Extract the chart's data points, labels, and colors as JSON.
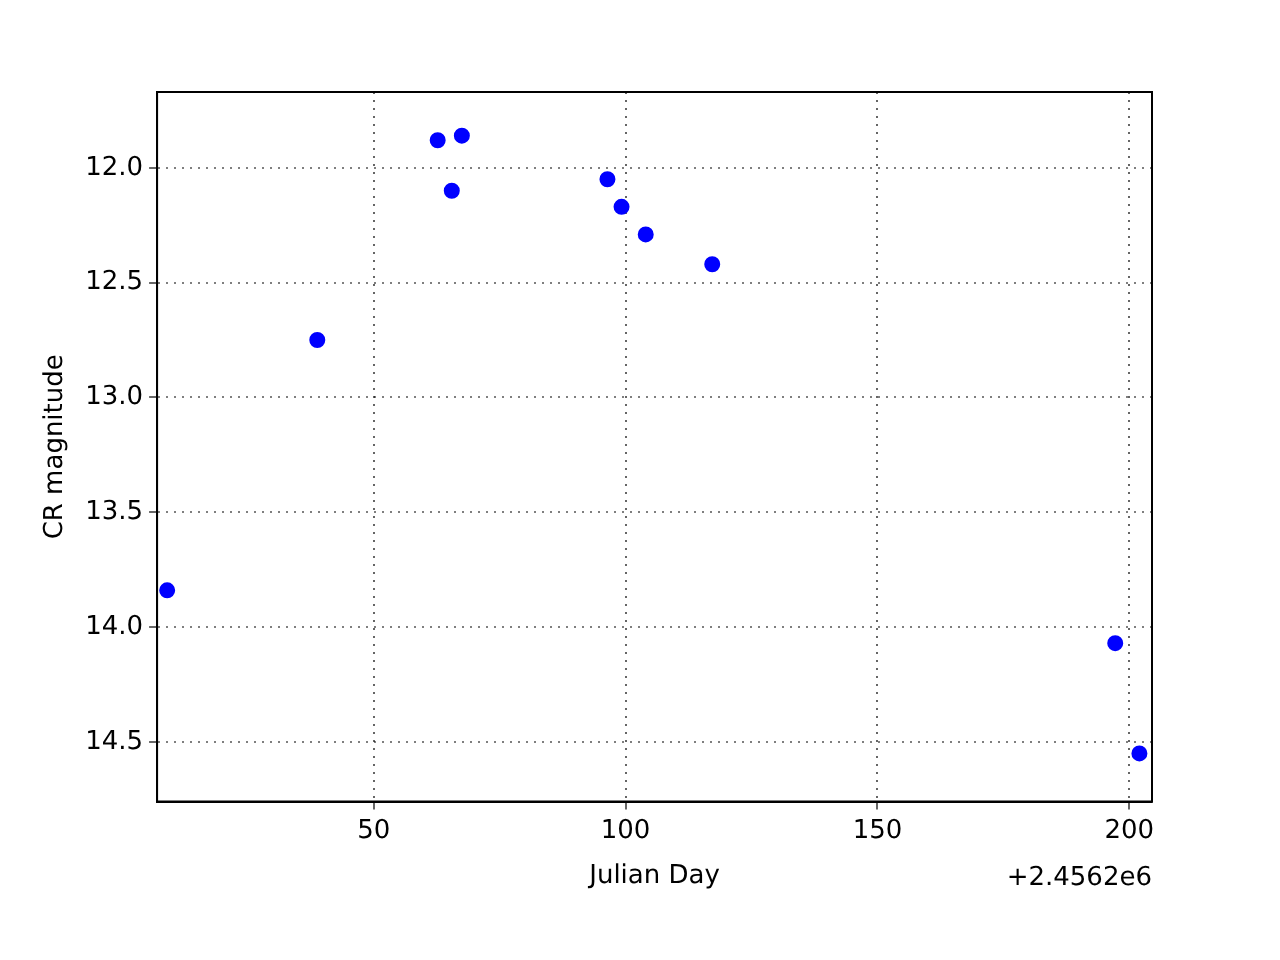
{
  "chart_data": {
    "type": "scatter",
    "xlabel": "Julian Day",
    "ylabel": "CR magnitude",
    "x": [
      9,
      38.8,
      62.7,
      67.5,
      65.5,
      96.4,
      99.2,
      104,
      117.2,
      197.2,
      202
    ],
    "series": [
      {
        "color": "#0000ff",
        "values": [
          13.84,
          12.75,
          11.88,
          11.86,
          12.1,
          12.05,
          12.17,
          12.29,
          12.42,
          14.07,
          14.55
        ]
      }
    ],
    "xlim": [
      7,
      204.5
    ],
    "xticks": [
      50,
      100,
      150,
      200
    ],
    "ylim": [
      14.76,
      11.67
    ],
    "yticks": [
      {
        "value": 12,
        "label": "12.0"
      },
      {
        "value": 12.5,
        "label": "12.5"
      },
      {
        "value": 13,
        "label": "13.0"
      },
      {
        "value": 13.5,
        "label": "13.5"
      },
      {
        "value": 14,
        "label": "14.0"
      },
      {
        "value": 14.5,
        "label": "14.5"
      }
    ],
    "annotations": [
      "+2.4562e6"
    ],
    "grid": true,
    "marker": "circle",
    "legend": false
  }
}
